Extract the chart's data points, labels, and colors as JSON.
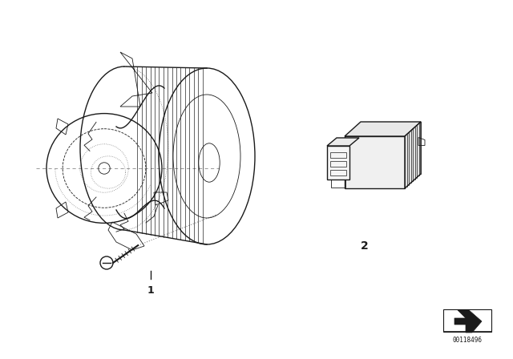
{
  "background_color": "#ffffff",
  "part_number": "00118496",
  "item1_label": "1",
  "item2_label": "2",
  "fig_width": 6.4,
  "fig_height": 4.48,
  "dpi": 100,
  "color_main": "#1a1a1a",
  "color_dashed": "#666666",
  "color_dotted": "#888888",
  "lw_main": 1.0,
  "lw_thin": 0.6,
  "lw_dotted": 0.5
}
